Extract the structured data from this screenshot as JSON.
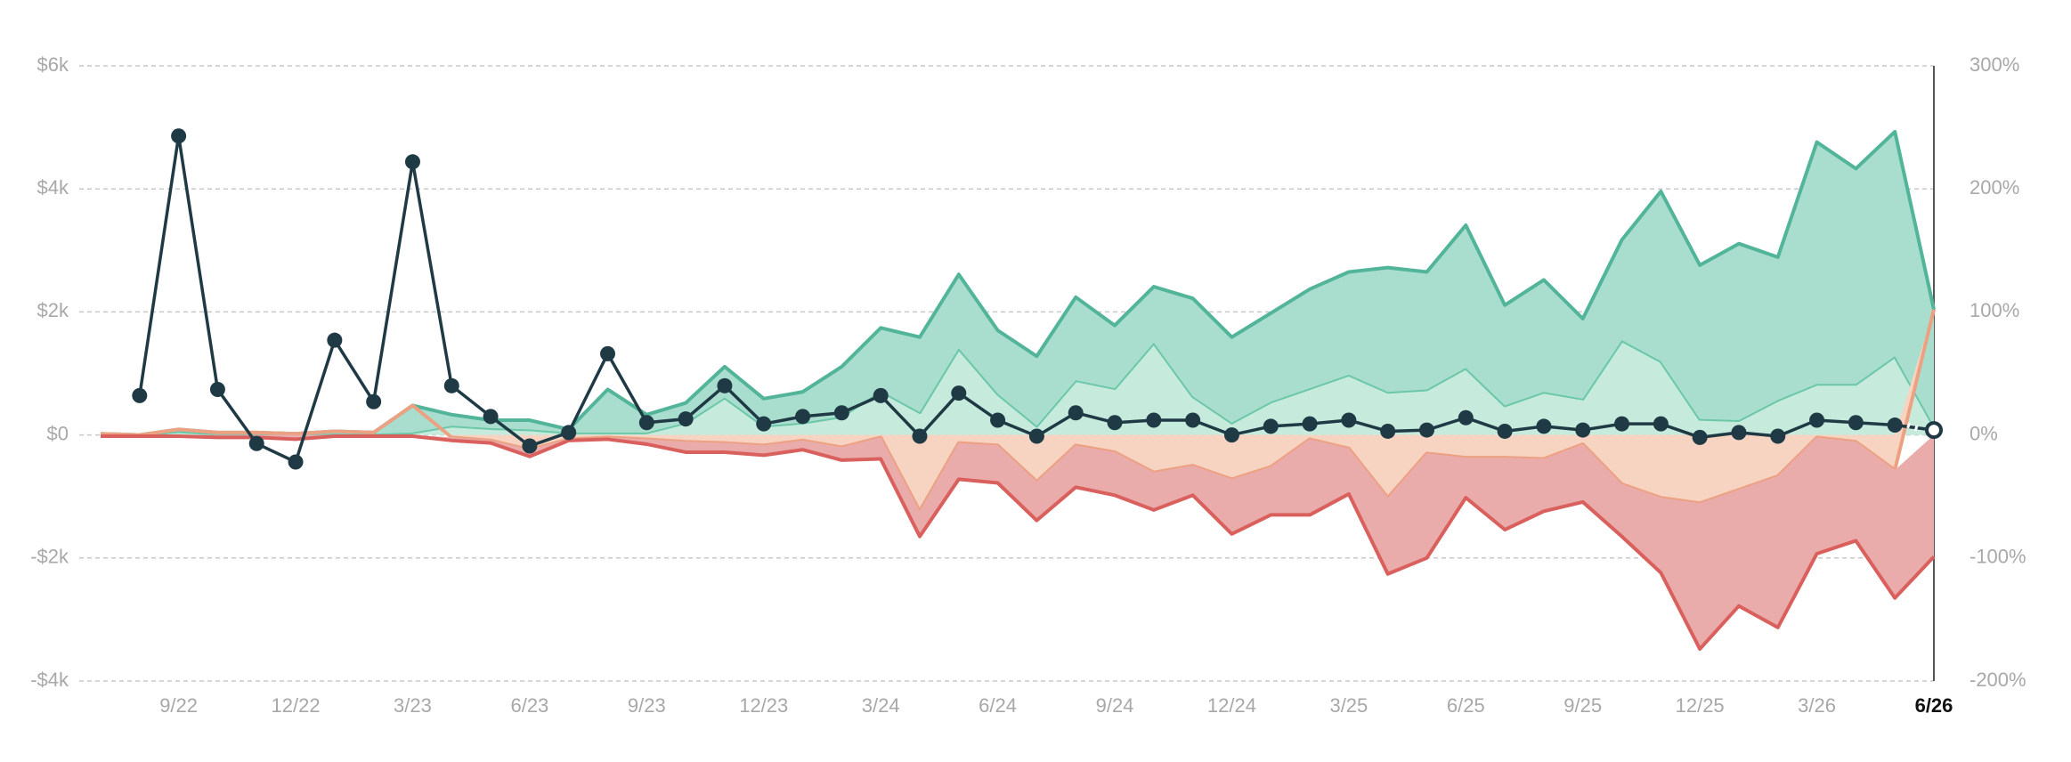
{
  "chart_data": {
    "type": "area",
    "stacked": true,
    "grid": true,
    "categories": [
      null,
      null,
      "9/22",
      null,
      null,
      "12/22",
      null,
      null,
      "3/23",
      null,
      null,
      "6/23",
      null,
      null,
      "9/23",
      null,
      null,
      "12/23",
      null,
      null,
      "3/24",
      null,
      null,
      "6/24",
      null,
      null,
      "9/24",
      null,
      null,
      "12/24",
      null,
      null,
      "3/25",
      null,
      null,
      "6/25",
      null,
      null,
      "9/25",
      null,
      null,
      "12/25",
      null,
      null,
      "3/26",
      null,
      null,
      "6/26"
    ],
    "ylim": [
      -4000,
      6000
    ],
    "yticks": [
      {
        "value": 6000,
        "label": "$6k"
      },
      {
        "value": 4000,
        "label": "$4k"
      },
      {
        "value": 2000,
        "label": "$2k"
      },
      {
        "value": 0,
        "label": "$0"
      },
      {
        "value": -2000,
        "label": "-$2k"
      },
      {
        "value": -4000,
        "label": "-$4k"
      }
    ],
    "y2lim": [
      -200,
      300
    ],
    "y2ticks": [
      {
        "value": 300,
        "label": "300%"
      },
      {
        "value": 200,
        "label": "200%"
      },
      {
        "value": 100,
        "label": "100%"
      },
      {
        "value": 0,
        "label": "0%"
      },
      {
        "value": -100,
        "label": "-100%"
      },
      {
        "value": -200,
        "label": "-200%"
      }
    ],
    "series": [
      {
        "type": "area",
        "color": "#c6ebdc",
        "line_color": "#6cc7a8",
        "values": [
          0,
          0,
          60,
          20,
          20,
          0,
          20,
          20,
          40,
          150,
          110,
          90,
          40,
          40,
          40,
          200,
          610,
          150,
          200,
          300,
          720,
          370,
          1410,
          670,
          150,
          890,
          760,
          1500,
          630,
          200,
          540,
          760,
          980,
          700,
          740,
          1090,
          480,
          700,
          590,
          1540,
          1200,
          260,
          240,
          570,
          830,
          830,
          1280,
          150
        ]
      },
      {
        "type": "area",
        "color": "#a9decf",
        "line_color": "#52b499",
        "values": [
          20,
          0,
          30,
          20,
          20,
          20,
          40,
          20,
          440,
          180,
          130,
          150,
          50,
          700,
          290,
          320,
          500,
          440,
          500,
          810,
          1020,
          1220,
          1200,
          1030,
          1130,
          1350,
          1020,
          910,
          1590,
          1390,
          1440,
          1610,
          1670,
          2020,
          1910,
          2320,
          1630,
          1820,
          1300,
          1630,
          2760,
          2500,
          2870,
          2320,
          3930,
          3500,
          3650,
          1890
        ]
      },
      {
        "type": "area",
        "color": "#f7d4c1",
        "line_color": "#eca183",
        "values": [
          0,
          0,
          0,
          0,
          0,
          0,
          0,
          0,
          0,
          -40,
          -90,
          -240,
          -70,
          -40,
          -70,
          -110,
          -130,
          -170,
          -90,
          -200,
          -40,
          -1240,
          -130,
          -170,
          -760,
          -170,
          -280,
          -610,
          -500,
          -720,
          -520,
          -70,
          -220,
          -1020,
          -300,
          -370,
          -370,
          -390,
          -150,
          -800,
          -1020,
          -1110,
          -890,
          -670,
          -40,
          -110,
          -570,
          0
        ]
      },
      {
        "type": "area",
        "color": "#eaacab",
        "line_color": "#d9605c",
        "values": [
          -20,
          -20,
          -20,
          -40,
          -40,
          -70,
          -20,
          -20,
          -20,
          -50,
          -40,
          -110,
          -20,
          -30,
          -80,
          -170,
          -150,
          -160,
          -150,
          -210,
          -350,
          -410,
          -590,
          -610,
          -630,
          -680,
          -700,
          -610,
          -480,
          -890,
          -780,
          -1230,
          -740,
          -1240,
          -1700,
          -650,
          -1170,
          -850,
          -940,
          -850,
          -1220,
          -2370,
          -1890,
          -2460,
          -1890,
          -1610,
          -2080,
          -1980
        ]
      },
      {
        "type": "line",
        "axis": "y2",
        "color": "#1f3a45",
        "values": [
          null,
          32,
          243,
          37,
          -7,
          -22,
          77,
          27,
          222,
          40,
          15,
          -9,
          2,
          66,
          10,
          13,
          40,
          9,
          15,
          18,
          32,
          -1,
          34,
          12,
          -1,
          18,
          10,
          12,
          12,
          0,
          7,
          9,
          12,
          3,
          4,
          14,
          3,
          7,
          4,
          9,
          9,
          -2,
          2,
          -1,
          12,
          10,
          8,
          4
        ]
      }
    ]
  }
}
